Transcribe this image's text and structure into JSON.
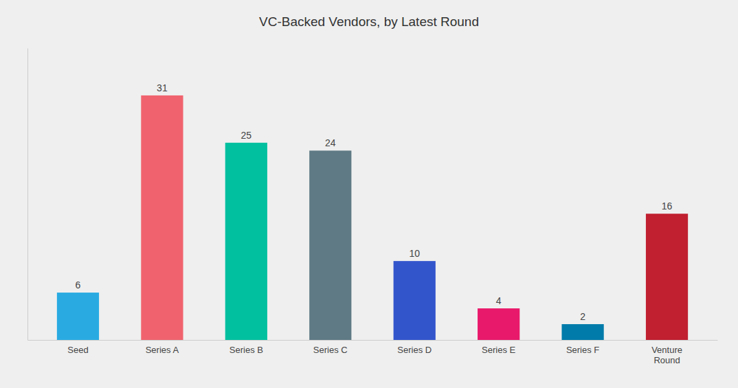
{
  "chart_data": {
    "type": "bar",
    "title": "VC-Backed Vendors, by Latest Round",
    "categories": [
      "Seed",
      "Series A",
      "Series B",
      "Series C",
      "Series D",
      "Series E",
      "Series F",
      "Venture\nRound"
    ],
    "values": [
      6,
      31,
      25,
      24,
      10,
      4,
      2,
      16
    ],
    "colors": [
      "#29ABE2",
      "#F0636E",
      "#00C0A0",
      "#5F7A85",
      "#3355CC",
      "#E8196A",
      "#007BAA",
      "#C02030"
    ],
    "ylim": [
      0,
      37
    ],
    "grid": false,
    "data_labels": true,
    "tick_labels": "x"
  }
}
